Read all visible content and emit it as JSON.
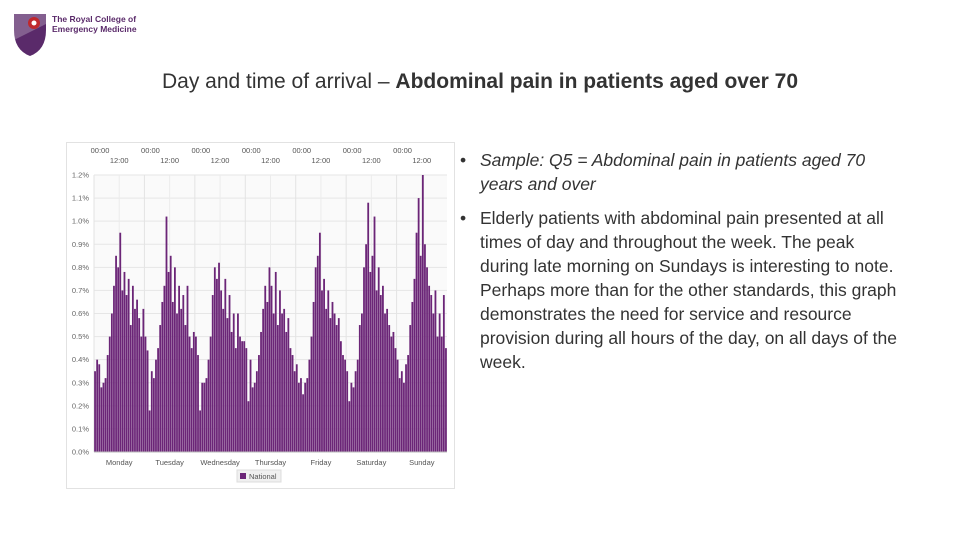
{
  "logo": {
    "line1": "The Royal College of",
    "line2": "Emergency Medicine",
    "crest_colors": {
      "shield": "#5a2a6a",
      "emblem": "#c0282d"
    }
  },
  "title": {
    "prefix": "Day and time of arrival – ",
    "bold": "Abdominal pain in patients aged over 70"
  },
  "bullets": [
    {
      "text": "Sample: Q5 = Abdominal pain in patients aged 70 years and over",
      "italic": true
    },
    {
      "text": "Elderly patients with abdominal pain presented at all times of day and throughout the week. The peak during late morning on Sundays is interesting to note. Perhaps more than for the other standards, this graph demonstrates the need for service and resource provision during all hours of the day, on all days of the week.",
      "italic": false
    }
  ],
  "chart_data": {
    "type": "bar",
    "days": [
      "Monday",
      "Tuesday",
      "Wednesday",
      "Thursday",
      "Friday",
      "Saturday",
      "Sunday"
    ],
    "top_labels_a": [
      "00:00",
      "00:00",
      "00:00",
      "00:00",
      "00:00",
      "00:00",
      "00:00"
    ],
    "top_labels_b": [
      "12:00",
      "12:00",
      "12:00",
      "12:00",
      "12:00",
      "12:00",
      "12:00"
    ],
    "y_ticks": [
      "0.0%",
      "0.1%",
      "0.2%",
      "0.3%",
      "0.4%",
      "0.5%",
      "0.6%",
      "0.7%",
      "0.8%",
      "0.9%",
      "1.0%",
      "1.1%",
      "1.2%"
    ],
    "ylim": [
      0,
      1.2
    ],
    "legend": {
      "label": "National",
      "position": "bottom-center"
    },
    "bar_color": "#6b2577",
    "grid": true,
    "series": [
      {
        "name": "National",
        "values": [
          0.35,
          0.4,
          0.38,
          0.28,
          0.3,
          0.32,
          0.42,
          0.5,
          0.6,
          0.72,
          0.85,
          0.8,
          0.95,
          0.7,
          0.78,
          0.68,
          0.75,
          0.55,
          0.72,
          0.62,
          0.66,
          0.58,
          0.5,
          0.62,
          0.5,
          0.44,
          0.18,
          0.35,
          0.32,
          0.4,
          0.45,
          0.55,
          0.65,
          0.72,
          1.02,
          0.78,
          0.85,
          0.65,
          0.8,
          0.6,
          0.72,
          0.62,
          0.68,
          0.55,
          0.72,
          0.5,
          0.45,
          0.52,
          0.5,
          0.42,
          0.18,
          0.3,
          0.3,
          0.32,
          0.4,
          0.5,
          0.68,
          0.8,
          0.75,
          0.82,
          0.7,
          0.62,
          0.75,
          0.58,
          0.68,
          0.52,
          0.6,
          0.45,
          0.6,
          0.5,
          0.48,
          0.48,
          0.45,
          0.22,
          0.4,
          0.28,
          0.3,
          0.35,
          0.42,
          0.52,
          0.62,
          0.72,
          0.65,
          0.8,
          0.72,
          0.6,
          0.78,
          0.55,
          0.7,
          0.6,
          0.62,
          0.52,
          0.58,
          0.45,
          0.42,
          0.35,
          0.38,
          0.3,
          0.32,
          0.25,
          0.3,
          0.32,
          0.4,
          0.5,
          0.65,
          0.8,
          0.85,
          0.95,
          0.7,
          0.75,
          0.62,
          0.7,
          0.58,
          0.65,
          0.6,
          0.55,
          0.58,
          0.48,
          0.42,
          0.4,
          0.35,
          0.22,
          0.3,
          0.28,
          0.35,
          0.4,
          0.55,
          0.6,
          0.8,
          0.9,
          1.08,
          0.78,
          0.85,
          1.02,
          0.7,
          0.8,
          0.68,
          0.72,
          0.6,
          0.62,
          0.55,
          0.5,
          0.52,
          0.45,
          0.4,
          0.32,
          0.35,
          0.3,
          0.38,
          0.42,
          0.55,
          0.65,
          0.75,
          0.95,
          1.1,
          0.85,
          1.2,
          0.9,
          0.8,
          0.72,
          0.68,
          0.6,
          0.7,
          0.5,
          0.6,
          0.5,
          0.68,
          0.45
        ]
      }
    ]
  }
}
